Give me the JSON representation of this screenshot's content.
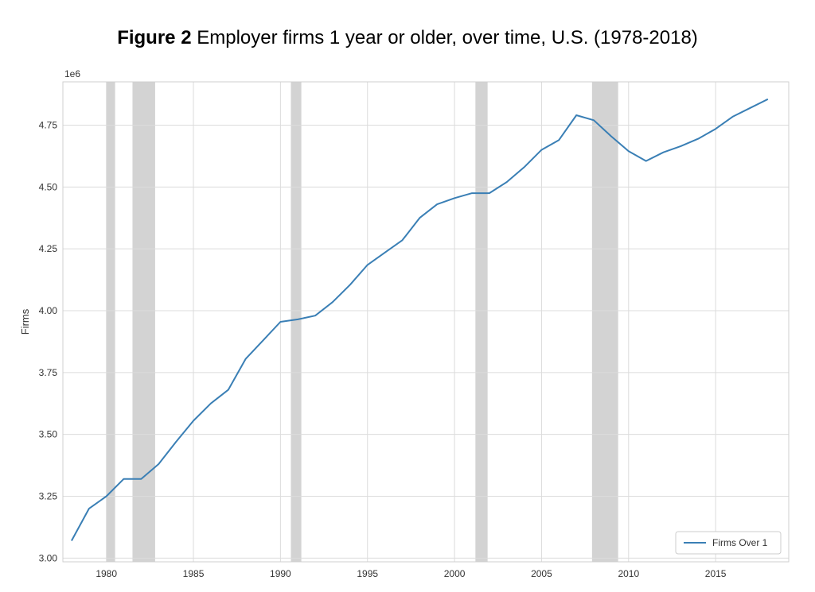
{
  "title": {
    "prefix": "Figure 2",
    "text": "Employer firms 1 year or older, over time, U.S. (1978-2018)"
  },
  "chart_data": {
    "type": "line",
    "xlabel": "",
    "ylabel": "Firms",
    "y_offset_label": "1e6",
    "xlim": [
      1977.5,
      2019.2
    ],
    "ylim": [
      2.985,
      4.925
    ],
    "x_ticks": [
      1980,
      1985,
      1990,
      1995,
      2000,
      2005,
      2010,
      2015
    ],
    "y_ticks": [
      3.0,
      3.25,
      3.5,
      3.75,
      4.0,
      4.25,
      4.5,
      4.75
    ],
    "y_tick_labels": [
      "3.00",
      "3.25",
      "3.50",
      "3.75",
      "4.00",
      "4.25",
      "4.50",
      "4.75"
    ],
    "grid": true,
    "legend_position": "lower-right",
    "recession_bands": [
      [
        1980.0,
        1980.5
      ],
      [
        1981.5,
        1982.8
      ],
      [
        1990.6,
        1991.2
      ],
      [
        2001.2,
        2001.9
      ],
      [
        2007.9,
        2009.4
      ]
    ],
    "colors": {
      "line": "#3a7fb5",
      "band": "#d3d3d3",
      "grid": "#dcdcdc",
      "frame": "#cfcfcf"
    },
    "series": [
      {
        "name": "Firms Over 1",
        "x": [
          1978,
          1979,
          1980,
          1981,
          1982,
          1983,
          1984,
          1985,
          1986,
          1987,
          1988,
          1989,
          1990,
          1991,
          1992,
          1993,
          1994,
          1995,
          1996,
          1997,
          1998,
          1999,
          2000,
          2001,
          2002,
          2003,
          2004,
          2005,
          2006,
          2007,
          2008,
          2009,
          2010,
          2011,
          2012,
          2013,
          2014,
          2015,
          2016,
          2017,
          2018
        ],
        "values": [
          3.07,
          3.2,
          3.25,
          3.32,
          3.32,
          3.38,
          3.47,
          3.555,
          3.625,
          3.68,
          3.805,
          3.88,
          3.955,
          3.965,
          3.98,
          4.035,
          4.105,
          4.185,
          4.235,
          4.285,
          4.375,
          4.43,
          4.455,
          4.475,
          4.475,
          4.52,
          4.58,
          4.65,
          4.69,
          4.79,
          4.77,
          4.705,
          4.645,
          4.605,
          4.64,
          4.665,
          4.695,
          4.735,
          4.785,
          4.82,
          4.855
        ]
      }
    ]
  }
}
